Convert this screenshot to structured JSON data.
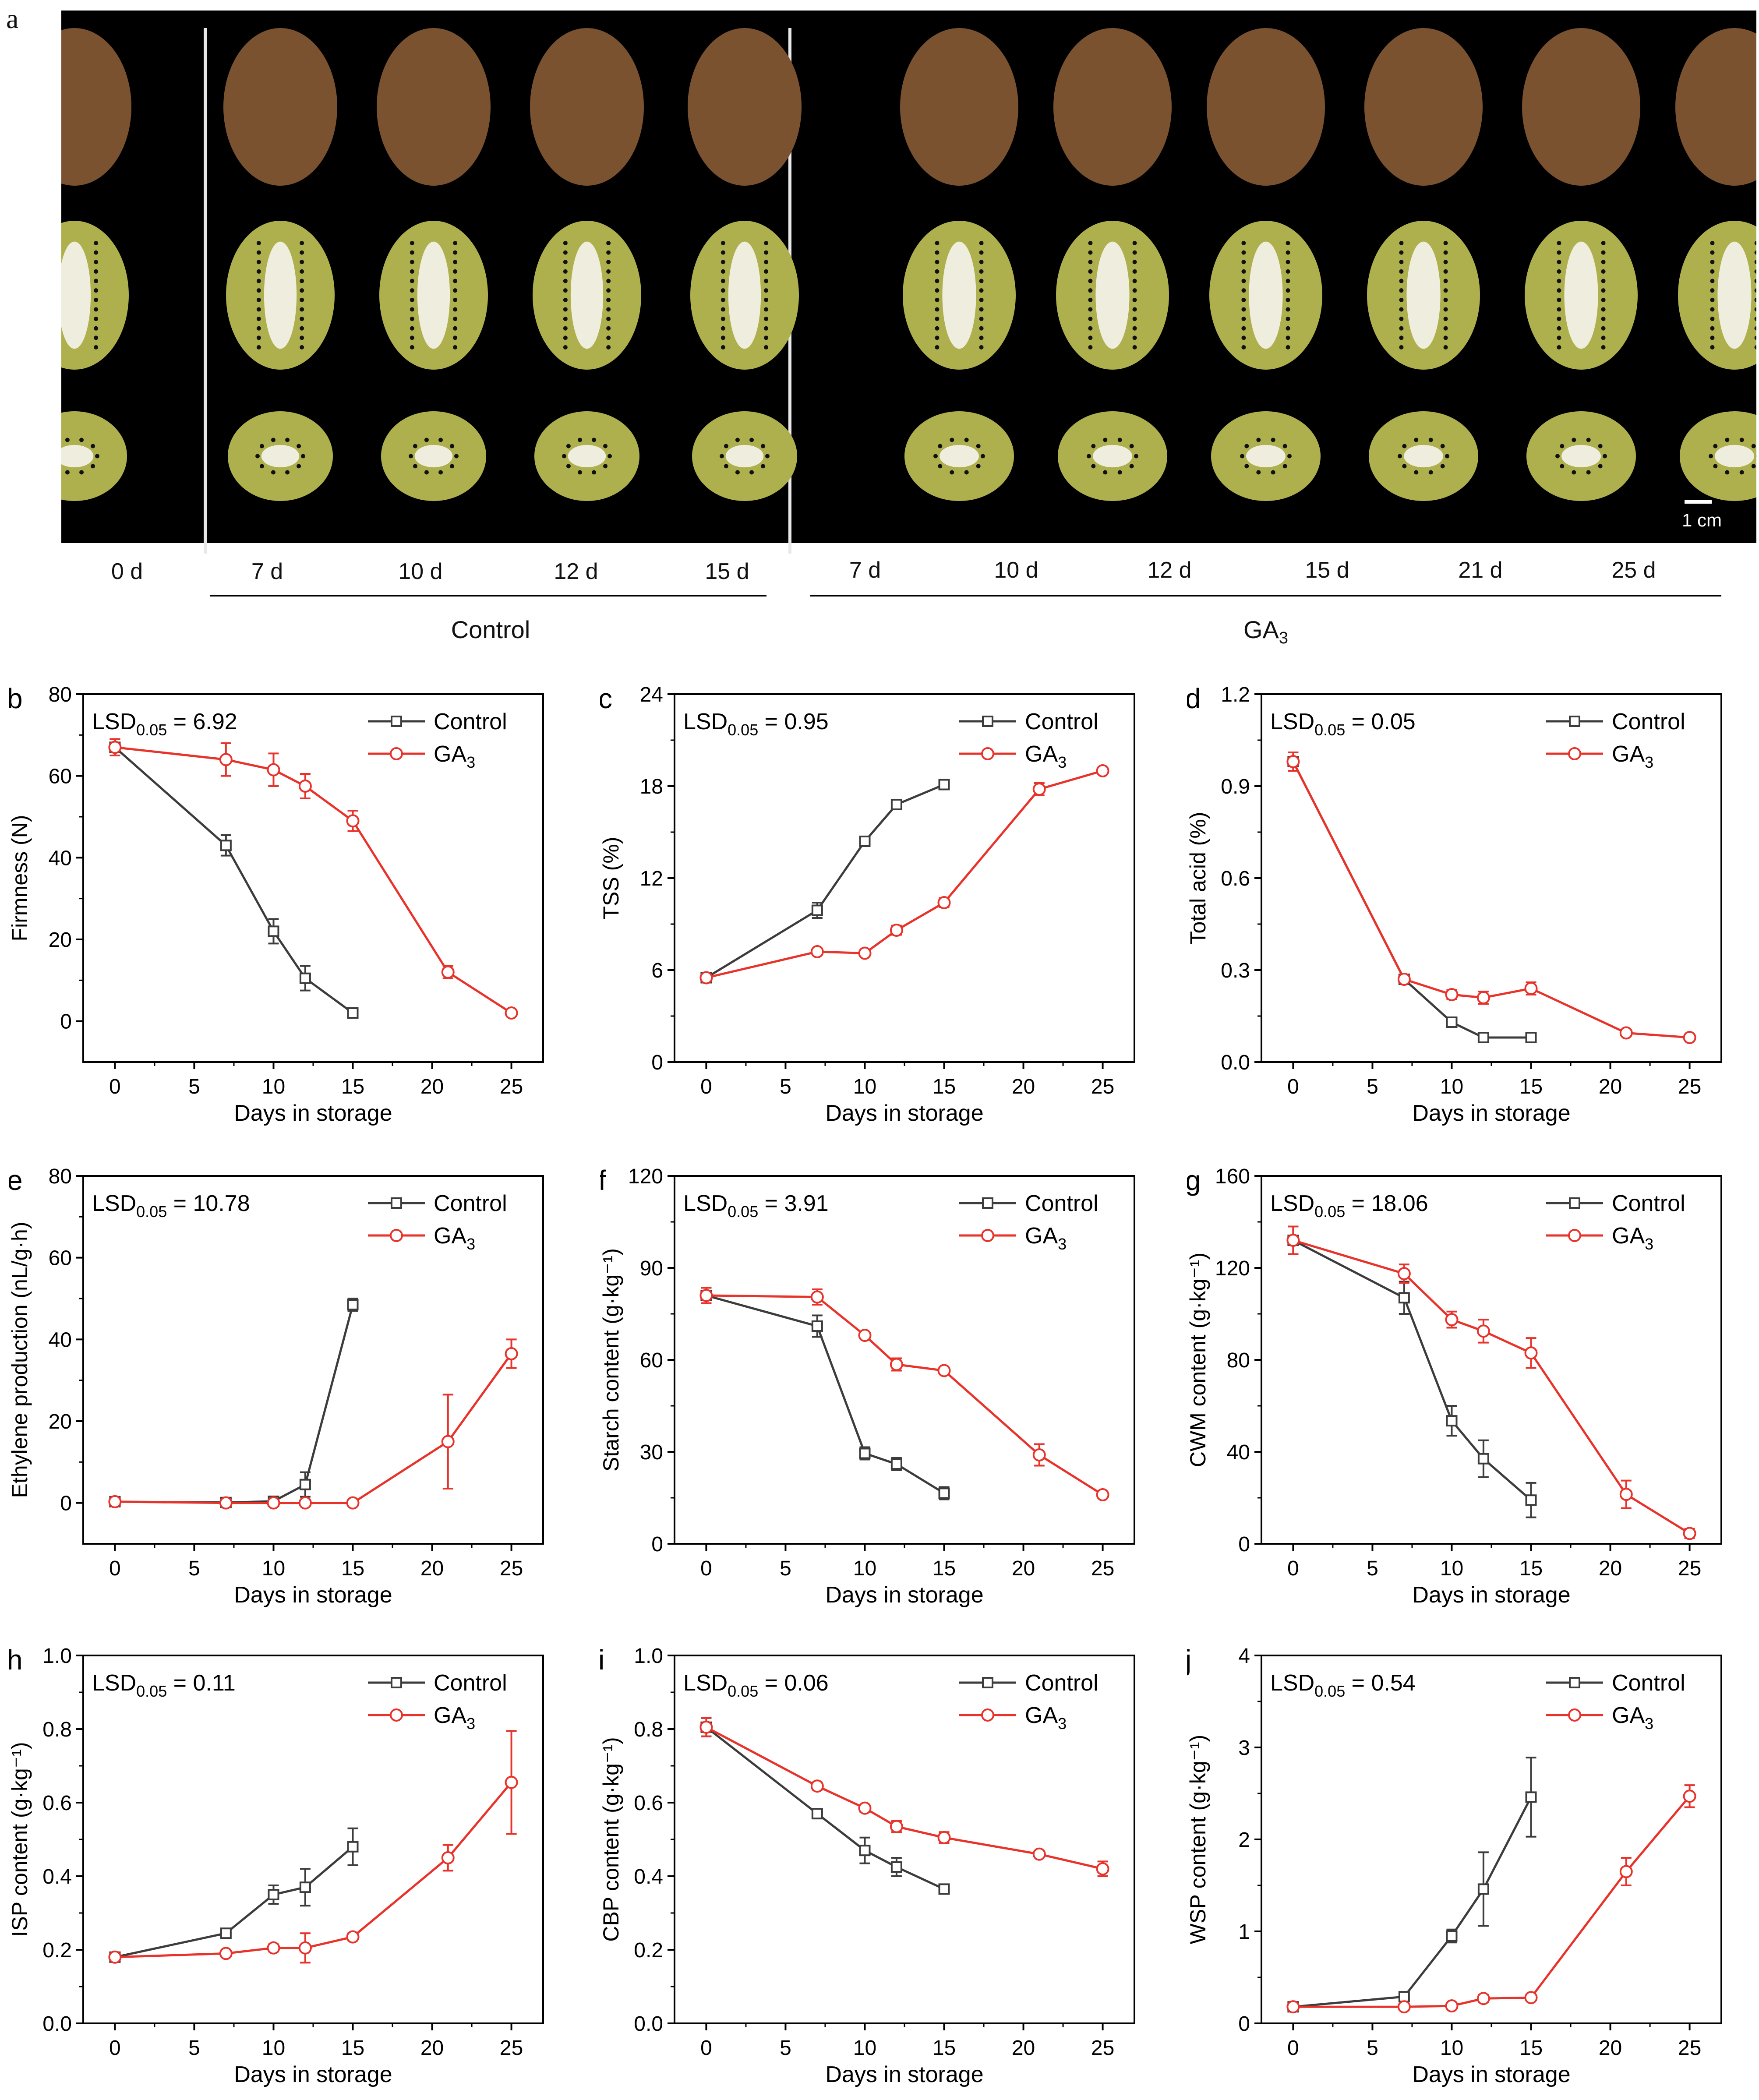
{
  "panel_a": {
    "letter": "a",
    "day_labels_left": [
      "0 d"
    ],
    "control_days": [
      "7 d",
      "10 d",
      "12 d",
      "15 d"
    ],
    "ga3_days": [
      "7 d",
      "10 d",
      "12 d",
      "15 d",
      "21 d",
      "25 d"
    ],
    "control_label": "Control",
    "ga3_label": "GA",
    "ga3_sub": "3",
    "scale_label": "1 cm"
  },
  "chart_data": [
    {
      "id": "b",
      "type": "line",
      "ylabel": "Firmness (N)",
      "xlabel": "Days in storage",
      "lsd": "LSD",
      "lsd_sub": "0.05",
      "lsd_value": "= 6.92",
      "xlim": [
        -2,
        27
      ],
      "ylim": [
        -10,
        80
      ],
      "xticks": [
        0,
        5,
        10,
        15,
        20,
        25
      ],
      "yticks": [
        0,
        20,
        40,
        60,
        80
      ],
      "xtick_labels": [
        "0",
        "5",
        "10",
        "15",
        "20",
        "25"
      ],
      "ytick_labels": [
        "0",
        "20",
        "40",
        "60",
        "80"
      ],
      "series": [
        {
          "name": "Control",
          "x": [
            0,
            7,
            10,
            12,
            15
          ],
          "y": [
            67,
            43,
            22,
            10.5,
            2
          ],
          "err": [
            2,
            2.5,
            3,
            3,
            0.5
          ]
        },
        {
          "name": "GA",
          "name_sub": "3",
          "x": [
            0,
            7,
            10,
            12,
            15,
            21,
            25
          ],
          "y": [
            67,
            64,
            61.5,
            57.5,
            49,
            12,
            2
          ],
          "err": [
            2,
            4,
            4,
            3,
            2.5,
            1.5,
            0.5
          ]
        }
      ]
    },
    {
      "id": "c",
      "type": "line",
      "ylabel": "TSS (%)",
      "xlabel": "Days in storage",
      "lsd": "LSD",
      "lsd_sub": "0.05",
      "lsd_value": "= 0.95",
      "xlim": [
        -2,
        27
      ],
      "ylim": [
        0,
        24
      ],
      "xticks": [
        0,
        5,
        10,
        15,
        20,
        25
      ],
      "yticks": [
        0,
        6,
        12,
        18,
        24
      ],
      "xtick_labels": [
        "0",
        "5",
        "10",
        "15",
        "20",
        "25"
      ],
      "ytick_labels": [
        "0",
        "6",
        "12",
        "18",
        "24"
      ],
      "series": [
        {
          "name": "Control",
          "x": [
            0,
            7,
            10,
            12,
            15
          ],
          "y": [
            5.5,
            9.9,
            14.4,
            16.8,
            18.1
          ],
          "err": [
            0.2,
            0.5,
            0.3,
            0.2,
            0.2
          ]
        },
        {
          "name": "GA",
          "name_sub": "3",
          "x": [
            0,
            7,
            10,
            12,
            15,
            21,
            25
          ],
          "y": [
            5.5,
            7.2,
            7.1,
            8.6,
            10.4,
            17.8,
            19.0
          ],
          "err": [
            0.2,
            0.2,
            0.2,
            0.3,
            0.3,
            0.4,
            0.2
          ]
        }
      ]
    },
    {
      "id": "d",
      "type": "line",
      "ylabel": "Total acid (%)",
      "xlabel": "Days in storage",
      "lsd": "LSD",
      "lsd_sub": "0.05",
      "lsd_value": "= 0.05",
      "xlim": [
        -2,
        27
      ],
      "ylim": [
        0,
        1.2
      ],
      "xticks": [
        0,
        5,
        10,
        15,
        20,
        25
      ],
      "yticks": [
        0,
        0.3,
        0.6,
        0.9,
        1.2
      ],
      "xtick_labels": [
        "0",
        "5",
        "10",
        "15",
        "20",
        "25"
      ],
      "ytick_labels": [
        "0.0",
        "0.3",
        "0.6",
        "0.9",
        "1.2"
      ],
      "series": [
        {
          "name": "Control",
          "x": [
            0,
            7,
            10,
            12,
            15
          ],
          "y": [
            0.98,
            0.27,
            0.13,
            0.08,
            0.08
          ],
          "err": [
            0.03,
            0.01,
            0.01,
            0.01,
            0.01
          ]
        },
        {
          "name": "GA",
          "name_sub": "3",
          "x": [
            0,
            7,
            10,
            12,
            15,
            21,
            25
          ],
          "y": [
            0.98,
            0.27,
            0.22,
            0.21,
            0.24,
            0.095,
            0.08
          ],
          "err": [
            0.03,
            0.01,
            0.015,
            0.02,
            0.02,
            0.01,
            0.01
          ]
        }
      ]
    },
    {
      "id": "e",
      "type": "line",
      "ylabel": "Ethylene production (nL/g·h)",
      "xlabel": "Days in storage",
      "lsd": "LSD",
      "lsd_sub": "0.05",
      "lsd_value": "= 10.78",
      "xlim": [
        -2,
        27
      ],
      "ylim": [
        -10,
        80
      ],
      "xticks": [
        0,
        5,
        10,
        15,
        20,
        25
      ],
      "yticks": [
        0,
        20,
        40,
        60,
        80
      ],
      "xtick_labels": [
        "0",
        "5",
        "10",
        "15",
        "20",
        "25"
      ],
      "ytick_labels": [
        "0",
        "20",
        "40",
        "60",
        "80"
      ],
      "series": [
        {
          "name": "Control",
          "x": [
            0,
            7,
            10,
            12,
            15
          ],
          "y": [
            0.3,
            0.1,
            0.4,
            4.5,
            48.5
          ],
          "err": [
            0.5,
            0.5,
            0.5,
            3,
            1.5
          ]
        },
        {
          "name": "GA",
          "name_sub": "3",
          "x": [
            0,
            7,
            10,
            12,
            15,
            21,
            25
          ],
          "y": [
            0.3,
            0,
            0,
            0,
            0,
            15,
            36.5
          ],
          "err": [
            0.5,
            0.5,
            0.3,
            0.3,
            0.3,
            11.5,
            3.5
          ]
        }
      ]
    },
    {
      "id": "f",
      "type": "line",
      "ylabel": "Starch content  (g·kg⁻¹)",
      "xlabel": "Days in storage",
      "lsd": "LSD",
      "lsd_sub": "0.05",
      "lsd_value": "= 3.91",
      "xlim": [
        -2,
        27
      ],
      "ylim": [
        0,
        120
      ],
      "xticks": [
        0,
        5,
        10,
        15,
        20,
        25
      ],
      "yticks": [
        0,
        30,
        60,
        90,
        120
      ],
      "xtick_labels": [
        "0",
        "5",
        "10",
        "15",
        "20",
        "25"
      ],
      "ytick_labels": [
        "0",
        "30",
        "60",
        "90",
        "120"
      ],
      "series": [
        {
          "name": "Control",
          "x": [
            0,
            7,
            10,
            12,
            15
          ],
          "y": [
            81,
            71,
            29.5,
            26,
            16.5
          ],
          "err": [
            2.5,
            3.5,
            2,
            2,
            2
          ]
        },
        {
          "name": "GA",
          "name_sub": "3",
          "x": [
            0,
            7,
            10,
            12,
            15,
            21,
            25
          ],
          "y": [
            81,
            80.5,
            68,
            58.5,
            56.5,
            29,
            16
          ],
          "err": [
            2.5,
            2.5,
            1,
            2,
            1,
            3.5,
            1
          ]
        }
      ]
    },
    {
      "id": "g",
      "type": "line",
      "ylabel": "CWM content (g·kg⁻¹)",
      "xlabel": "Days in storage",
      "lsd": "LSD",
      "lsd_sub": "0.05",
      "lsd_value": "= 18.06",
      "xlim": [
        -2,
        27
      ],
      "ylim": [
        0,
        160
      ],
      "xticks": [
        0,
        5,
        10,
        15,
        20,
        25
      ],
      "yticks": [
        0,
        40,
        80,
        120,
        160
      ],
      "xtick_labels": [
        "0",
        "5",
        "10",
        "15",
        "20",
        "25"
      ],
      "ytick_labels": [
        "0",
        "40",
        "80",
        "120",
        "160"
      ],
      "series": [
        {
          "name": "Control",
          "x": [
            0,
            7,
            10,
            12,
            15
          ],
          "y": [
            132,
            107,
            53.5,
            37,
            19
          ],
          "err": [
            6,
            7,
            6.5,
            8,
            7.5
          ]
        },
        {
          "name": "GA",
          "name_sub": "3",
          "x": [
            0,
            7,
            10,
            12,
            15,
            21,
            25
          ],
          "y": [
            132,
            117.5,
            97.5,
            92.5,
            83,
            21.5,
            4.5
          ],
          "err": [
            6,
            4,
            3.5,
            5,
            6.5,
            6,
            2
          ]
        }
      ]
    },
    {
      "id": "h",
      "type": "line",
      "ylabel": "ISP content (g·kg⁻¹)",
      "xlabel": "Days in storage",
      "lsd": "LSD",
      "lsd_sub": "0.05",
      "lsd_value": "= 0.11",
      "xlim": [
        -2,
        27
      ],
      "ylim": [
        0,
        1.0
      ],
      "xticks": [
        0,
        5,
        10,
        15,
        20,
        25
      ],
      "yticks": [
        0,
        0.2,
        0.4,
        0.6,
        0.8,
        1.0
      ],
      "xtick_labels": [
        "0",
        "5",
        "10",
        "15",
        "20",
        "25"
      ],
      "ytick_labels": [
        "0.0",
        "0.2",
        "0.4",
        "0.6",
        "0.8",
        "1.0"
      ],
      "series": [
        {
          "name": "Control",
          "x": [
            0,
            7,
            10,
            12,
            15
          ],
          "y": [
            0.18,
            0.245,
            0.35,
            0.37,
            0.48
          ],
          "err": [
            0.005,
            0.01,
            0.025,
            0.05,
            0.05
          ]
        },
        {
          "name": "GA",
          "name_sub": "3",
          "x": [
            0,
            7,
            10,
            12,
            15,
            21,
            25
          ],
          "y": [
            0.18,
            0.19,
            0.205,
            0.205,
            0.235,
            0.45,
            0.655
          ],
          "err": [
            0.005,
            0.01,
            0.01,
            0.04,
            0.01,
            0.035,
            0.14
          ]
        }
      ]
    },
    {
      "id": "i",
      "type": "line",
      "ylabel": "CBP content (g·kg⁻¹)",
      "xlabel": "Days in storage",
      "lsd": "LSD",
      "lsd_sub": "0.05",
      "lsd_value": "= 0.06",
      "xlim": [
        -2,
        27
      ],
      "ylim": [
        0,
        1.0
      ],
      "xticks": [
        0,
        5,
        10,
        15,
        20,
        25
      ],
      "yticks": [
        0,
        0.2,
        0.4,
        0.6,
        0.8,
        1.0
      ],
      "xtick_labels": [
        "0",
        "5",
        "10",
        "15",
        "20",
        "25"
      ],
      "ytick_labels": [
        "0.0",
        "0.2",
        "0.4",
        "0.6",
        "0.8",
        "1.0"
      ],
      "series": [
        {
          "name": "Control",
          "x": [
            0,
            7,
            10,
            12,
            15
          ],
          "y": [
            0.805,
            0.57,
            0.47,
            0.425,
            0.365
          ],
          "err": [
            0.025,
            0.01,
            0.035,
            0.025,
            0.005
          ]
        },
        {
          "name": "GA",
          "name_sub": "3",
          "x": [
            0,
            7,
            10,
            12,
            15,
            21,
            25
          ],
          "y": [
            0.805,
            0.645,
            0.585,
            0.535,
            0.505,
            0.46,
            0.42
          ],
          "err": [
            0.025,
            0.01,
            0.01,
            0.015,
            0.015,
            0.005,
            0.02
          ]
        }
      ]
    },
    {
      "id": "j",
      "type": "line",
      "ylabel": "WSP content (g·kg⁻¹)",
      "xlabel": "Days in storage",
      "lsd": "LSD",
      "lsd_sub": "0.05",
      "lsd_value": "= 0.54",
      "xlim": [
        -2,
        27
      ],
      "ylim": [
        0,
        4
      ],
      "xticks": [
        0,
        5,
        10,
        15,
        20,
        25
      ],
      "yticks": [
        0,
        1,
        2,
        3,
        4
      ],
      "xtick_labels": [
        "0",
        "5",
        "10",
        "15",
        "20",
        "25"
      ],
      "ytick_labels": [
        "0",
        "1",
        "2",
        "3",
        "4"
      ],
      "series": [
        {
          "name": "Control",
          "x": [
            0,
            7,
            10,
            12,
            15
          ],
          "y": [
            0.18,
            0.29,
            0.95,
            1.46,
            2.46
          ],
          "err": [
            0.01,
            0.02,
            0.07,
            0.4,
            0.43
          ]
        },
        {
          "name": "GA",
          "name_sub": "3",
          "x": [
            0,
            7,
            10,
            12,
            15,
            21,
            25
          ],
          "y": [
            0.18,
            0.18,
            0.19,
            0.27,
            0.28,
            1.65,
            2.47
          ],
          "err": [
            0.01,
            0.01,
            0.01,
            0.04,
            0.02,
            0.15,
            0.12
          ]
        }
      ]
    }
  ],
  "colors": {
    "control": "#3c3c3c",
    "ga3": "#e8322a",
    "photo_bg": "#000000",
    "kiwi_skin": "#7a5230",
    "kiwi_flesh": "#aeb04e",
    "kiwi_core": "#efeede"
  }
}
